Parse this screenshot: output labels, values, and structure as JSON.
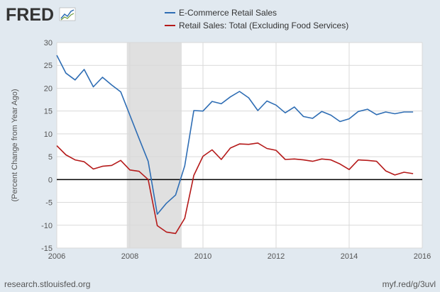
{
  "header": {
    "logo_text": "FRED"
  },
  "footer": {
    "source": "research.stlouisfed.org",
    "short_url": "myf.red/g/3uvl"
  },
  "colors": {
    "background": "#e1e9f0",
    "plot_background": "#ffffff",
    "recession_shade": "#e0e0e0",
    "series_1": "#2e6db4",
    "series_2": "#b51a1a",
    "zero_line": "#000000",
    "grid": "#d9d9d9"
  },
  "chart_data": {
    "type": "line",
    "ylabel": "(Percent Change from Year Ago)",
    "xlabel": "",
    "xlim": [
      2006,
      2016
    ],
    "ylim": [
      -15,
      30
    ],
    "yticks": [
      -15,
      -10,
      -5,
      0,
      5,
      10,
      15,
      20,
      25,
      30
    ],
    "xticks": [
      2006,
      2008,
      2010,
      2012,
      2014,
      2016
    ],
    "grid": true,
    "legend_position": "top",
    "recessions": [
      [
        2007.917,
        2009.417
      ]
    ],
    "zero_line": 0,
    "series": [
      {
        "name": "E-Commerce Retail Sales",
        "color": "#2e6db4",
        "x": [
          2006.0,
          2006.25,
          2006.5,
          2006.75,
          2007.0,
          2007.25,
          2007.5,
          2007.75,
          2008.0,
          2008.25,
          2008.5,
          2008.75,
          2009.0,
          2009.25,
          2009.5,
          2009.75,
          2010.0,
          2010.25,
          2010.5,
          2010.75,
          2011.0,
          2011.25,
          2011.5,
          2011.75,
          2012.0,
          2012.25,
          2012.5,
          2012.75,
          2013.0,
          2013.25,
          2013.5,
          2013.75,
          2014.0,
          2014.25,
          2014.5,
          2014.75,
          2015.0,
          2015.25,
          2015.5,
          2015.75
        ],
        "values": [
          27.2,
          23.3,
          21.8,
          24.1,
          20.3,
          22.4,
          20.7,
          19.2,
          14.1,
          9.0,
          4.0,
          -7.6,
          -5.2,
          -3.4,
          3.0,
          15.1,
          15.0,
          17.1,
          16.6,
          18.1,
          19.3,
          17.9,
          15.1,
          17.2,
          16.3,
          14.6,
          15.9,
          13.8,
          13.4,
          14.9,
          14.1,
          12.7,
          13.3,
          14.9,
          15.4,
          14.2,
          14.8,
          14.4,
          14.8,
          14.8
        ]
      },
      {
        "name": "Retail Sales: Total (Excluding Food Services)",
        "color": "#b51a1a",
        "x": [
          2006.0,
          2006.25,
          2006.5,
          2006.75,
          2007.0,
          2007.25,
          2007.5,
          2007.75,
          2008.0,
          2008.25,
          2008.5,
          2008.75,
          2009.0,
          2009.25,
          2009.5,
          2009.75,
          2010.0,
          2010.25,
          2010.5,
          2010.75,
          2011.0,
          2011.25,
          2011.5,
          2011.75,
          2012.0,
          2012.25,
          2012.5,
          2012.75,
          2013.0,
          2013.25,
          2013.5,
          2013.75,
          2014.0,
          2014.25,
          2014.5,
          2014.75,
          2015.0,
          2015.25,
          2015.5,
          2015.75
        ],
        "values": [
          7.4,
          5.4,
          4.3,
          3.9,
          2.3,
          2.9,
          3.1,
          4.2,
          2.1,
          1.8,
          0.0,
          -10.1,
          -11.5,
          -11.8,
          -8.5,
          0.9,
          5.1,
          6.5,
          4.4,
          6.9,
          7.8,
          7.7,
          8.0,
          6.8,
          6.4,
          4.4,
          4.5,
          4.3,
          4.0,
          4.5,
          4.3,
          3.4,
          2.2,
          4.3,
          4.2,
          4.0,
          1.9,
          1.0,
          1.6,
          1.3
        ]
      }
    ]
  }
}
